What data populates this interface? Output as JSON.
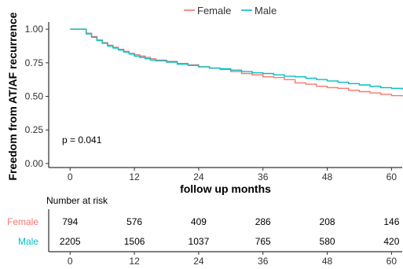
{
  "chart_data": {
    "type": "line",
    "subtype": "kaplan-meier",
    "title": "",
    "xlabel": "follow up months",
    "ylabel": "Freedom from AT/AF recurrence",
    "xlim": [
      -4,
      62
    ],
    "ylim": [
      -0.03,
      1.03
    ],
    "xticks": [
      0,
      12,
      24,
      36,
      48,
      60
    ],
    "yticks": [
      0.0,
      0.25,
      0.5,
      0.75,
      1.0
    ],
    "ytick_labels": [
      "0.00",
      "0.25",
      "0.50",
      "0.75",
      "1.00"
    ],
    "grid": false,
    "legend": {
      "position": "top-center",
      "entries": [
        "Female",
        "Male"
      ]
    },
    "annotation": "p = 0.041",
    "series": [
      {
        "name": "Female",
        "color": "#f8766d",
        "x": [
          0,
          3,
          4,
          5,
          6,
          7,
          8,
          9,
          10,
          11,
          12,
          13,
          14,
          15,
          16,
          18,
          20,
          22,
          24,
          26,
          28,
          30,
          32,
          34,
          36,
          38,
          40,
          42,
          44,
          46,
          48,
          50,
          52,
          54,
          56,
          58,
          60,
          62
        ],
        "y": [
          1.0,
          0.97,
          0.945,
          0.92,
          0.9,
          0.88,
          0.865,
          0.85,
          0.835,
          0.82,
          0.81,
          0.8,
          0.79,
          0.78,
          0.77,
          0.76,
          0.745,
          0.735,
          0.72,
          0.71,
          0.7,
          0.685,
          0.67,
          0.66,
          0.645,
          0.64,
          0.625,
          0.6,
          0.59,
          0.575,
          0.565,
          0.56,
          0.545,
          0.535,
          0.525,
          0.515,
          0.505,
          0.5
        ]
      },
      {
        "name": "Male",
        "color": "#00bfc4",
        "x": [
          0,
          3,
          4,
          5,
          6,
          7,
          8,
          9,
          10,
          11,
          12,
          13,
          14,
          15,
          16,
          18,
          20,
          22,
          24,
          26,
          28,
          30,
          32,
          34,
          36,
          38,
          40,
          42,
          44,
          46,
          48,
          50,
          52,
          54,
          56,
          58,
          60,
          62
        ],
        "y": [
          1.0,
          0.965,
          0.94,
          0.915,
          0.895,
          0.875,
          0.86,
          0.845,
          0.83,
          0.815,
          0.8,
          0.79,
          0.78,
          0.77,
          0.765,
          0.755,
          0.74,
          0.73,
          0.72,
          0.71,
          0.705,
          0.695,
          0.685,
          0.675,
          0.67,
          0.66,
          0.65,
          0.645,
          0.635,
          0.625,
          0.615,
          0.605,
          0.595,
          0.585,
          0.575,
          0.565,
          0.56,
          0.55
        ]
      }
    ],
    "risk_table": {
      "title": "Number at risk",
      "time_points": [
        0,
        12,
        24,
        36,
        48,
        60
      ],
      "groups": [
        {
          "name": "Female",
          "color": "#f8766d",
          "counts": [
            794,
            576,
            409,
            286,
            208,
            146
          ]
        },
        {
          "name": "Male",
          "color": "#00bfc4",
          "counts": [
            2205,
            1506,
            1037,
            765,
            580,
            420
          ]
        }
      ]
    }
  }
}
